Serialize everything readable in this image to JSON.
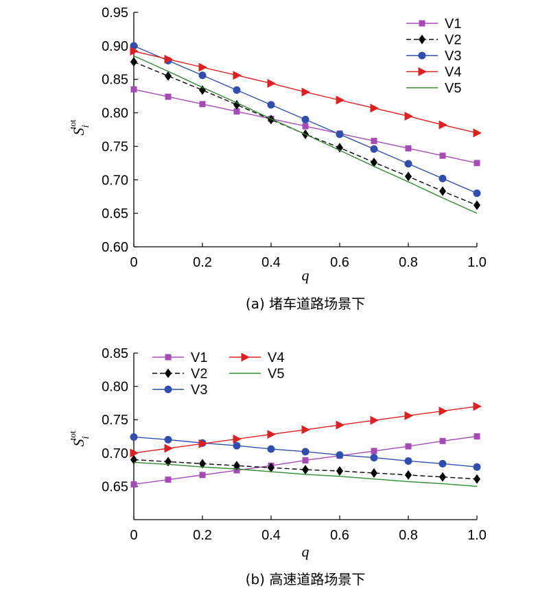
{
  "colors": {
    "V1": "#a64ab8",
    "V2": "#000000",
    "V3": "#2f4fb0",
    "V4": "#e02020",
    "V5": "#2e8b2e"
  },
  "chart_data": [
    {
      "type": "line",
      "caption": "(a) 堵车道路场景下",
      "xlabel": "q",
      "ylabel_main": "S",
      "ylabel_sub": "i",
      "ylabel_sup": "tot",
      "xlim": [
        0,
        1.0
      ],
      "ylim": [
        0.6,
        0.95
      ],
      "xticks": [
        "0",
        "0.2",
        "0.4",
        "0.6",
        "0.8",
        "1.0"
      ],
      "yticks": [
        "0.60",
        "0.65",
        "0.70",
        "0.75",
        "0.80",
        "0.85",
        "0.90",
        "0.95"
      ],
      "legend_position": "top-right",
      "x": [
        0,
        0.1,
        0.2,
        0.3,
        0.4,
        0.5,
        0.6,
        0.7,
        0.8,
        0.9,
        1.0
      ],
      "series": [
        {
          "name": "V1",
          "marker": "square",
          "dash": false,
          "values": [
            0.835,
            0.824,
            0.813,
            0.802,
            0.791,
            0.78,
            0.769,
            0.758,
            0.747,
            0.736,
            0.725
          ]
        },
        {
          "name": "V2",
          "marker": "diamond",
          "dash": true,
          "values": [
            0.876,
            0.855,
            0.834,
            0.812,
            0.79,
            0.768,
            0.748,
            0.726,
            0.705,
            0.683,
            0.662
          ]
        },
        {
          "name": "V3",
          "marker": "circle",
          "dash": false,
          "values": [
            0.9,
            0.878,
            0.856,
            0.834,
            0.812,
            0.79,
            0.768,
            0.746,
            0.724,
            0.702,
            0.68
          ]
        },
        {
          "name": "V4",
          "marker": "triangle",
          "dash": false,
          "values": [
            0.892,
            0.88,
            0.868,
            0.856,
            0.844,
            0.831,
            0.819,
            0.807,
            0.795,
            0.782,
            0.77
          ]
        },
        {
          "name": "V5",
          "marker": "none",
          "dash": false,
          "values": [
            0.885,
            0.862,
            0.838,
            0.815,
            0.791,
            0.768,
            0.744,
            0.72,
            0.697,
            0.673,
            0.65
          ]
        }
      ]
    },
    {
      "type": "line",
      "caption": "(b) 高速道路场景下",
      "xlabel": "q",
      "ylabel_main": "S",
      "ylabel_sub": "i",
      "ylabel_sup": "tot",
      "xlim": [
        0,
        1.0
      ],
      "ylim": [
        0.6,
        0.85
      ],
      "xticks": [
        "0",
        "0.2",
        "0.4",
        "0.6",
        "0.8",
        "1.0"
      ],
      "yticks": [
        "0.65",
        "0.70",
        "0.75",
        "0.80",
        "0.85"
      ],
      "legend_position": "top-left",
      "x": [
        0,
        0.1,
        0.2,
        0.3,
        0.4,
        0.5,
        0.6,
        0.7,
        0.8,
        0.9,
        1.0
      ],
      "series": [
        {
          "name": "V1",
          "marker": "square",
          "dash": false,
          "values": [
            0.653,
            0.66,
            0.667,
            0.674,
            0.681,
            0.689,
            0.696,
            0.703,
            0.71,
            0.718,
            0.725
          ]
        },
        {
          "name": "V2",
          "marker": "diamond",
          "dash": true,
          "values": [
            0.69,
            0.687,
            0.684,
            0.681,
            0.678,
            0.675,
            0.673,
            0.67,
            0.667,
            0.664,
            0.661
          ]
        },
        {
          "name": "V3",
          "marker": "circle",
          "dash": false,
          "values": [
            0.724,
            0.72,
            0.715,
            0.711,
            0.706,
            0.702,
            0.697,
            0.693,
            0.688,
            0.684,
            0.679
          ]
        },
        {
          "name": "V4",
          "marker": "triangle",
          "dash": false,
          "values": [
            0.7,
            0.707,
            0.714,
            0.721,
            0.728,
            0.735,
            0.742,
            0.749,
            0.756,
            0.763,
            0.77
          ]
        },
        {
          "name": "V5",
          "marker": "none",
          "dash": false,
          "values": [
            0.686,
            0.683,
            0.679,
            0.676,
            0.672,
            0.668,
            0.665,
            0.661,
            0.657,
            0.654,
            0.65
          ]
        }
      ]
    }
  ]
}
